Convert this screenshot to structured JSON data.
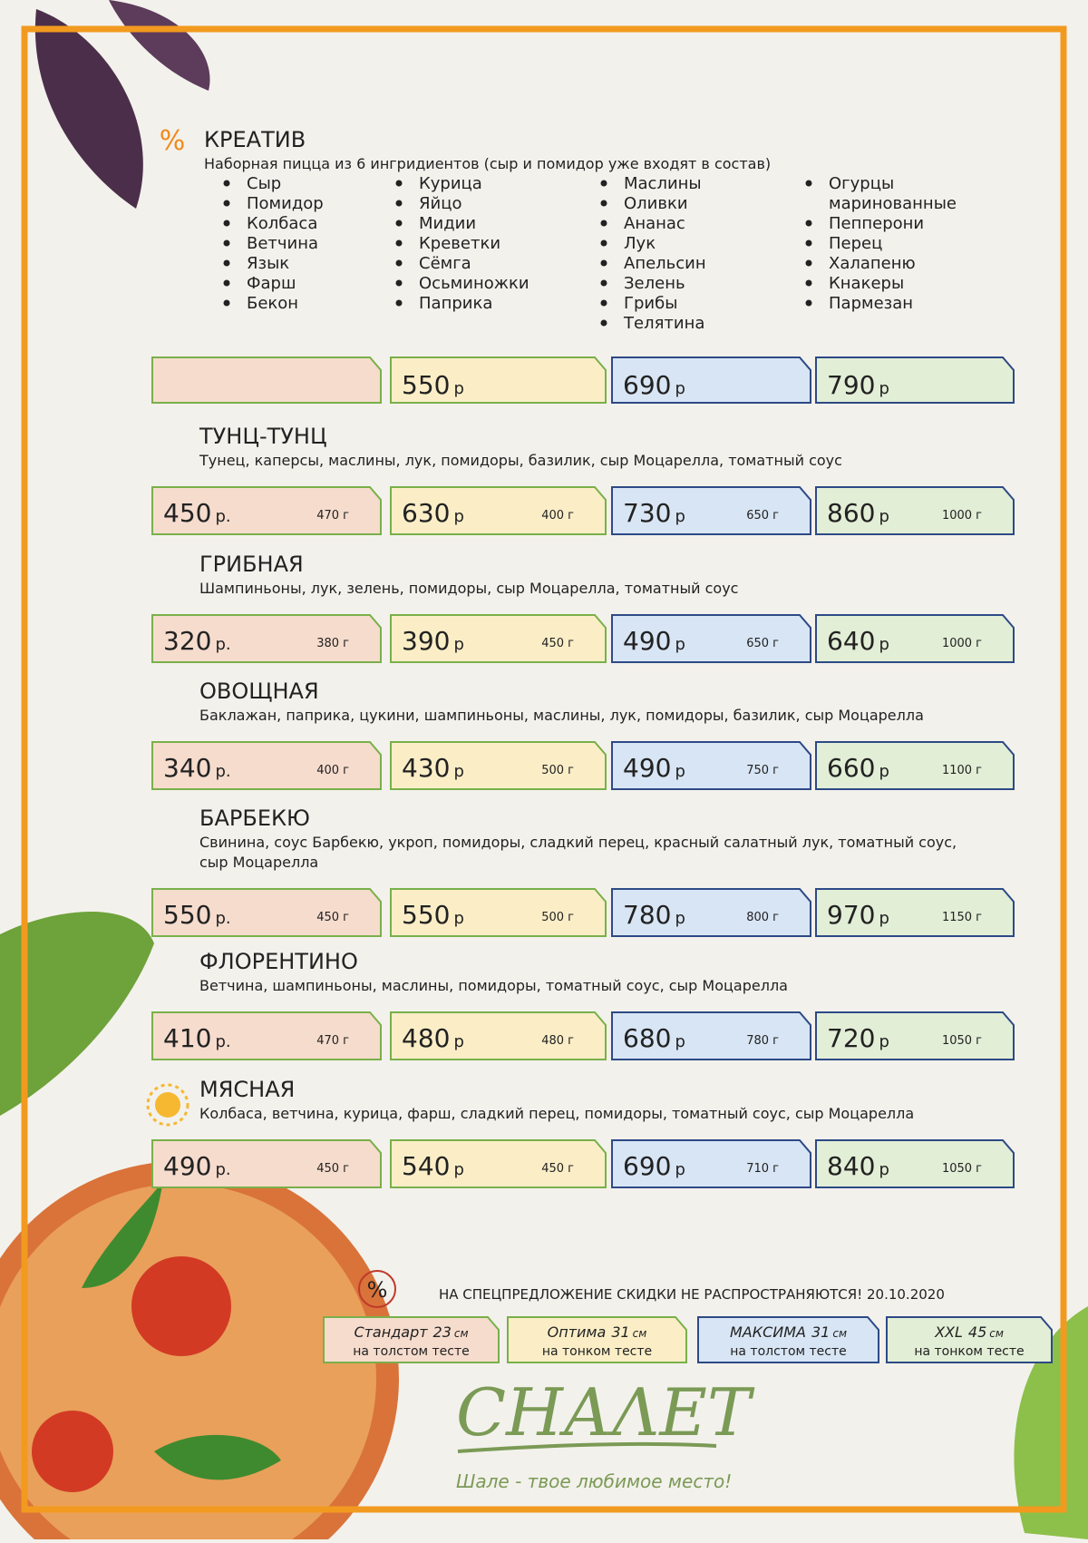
{
  "creative": {
    "title": "КРЕАТИВ",
    "subtitle": "Наборная пицца из 6 ингридиентов (сыр и помидор уже входят в состав)",
    "columns": [
      [
        "Сыр",
        "Помидор",
        "Колбаса",
        "Ветчина",
        "Язык",
        "Фарш",
        "Бекон"
      ],
      [
        "Курица",
        "Яйцо",
        "Мидии",
        "Креветки",
        "Сёмга",
        "Осьминожки",
        "Паприка"
      ],
      [
        "Маслины",
        "Оливки",
        "Ананас",
        "Лук",
        "Апельсин",
        "Зелень",
        "Грибы",
        "Телятина"
      ],
      [
        [
          "Огурцы",
          "маринованные"
        ],
        "Пепперони",
        "Перец",
        "Халапеню",
        "Кнакеры",
        "Пармезан"
      ]
    ],
    "prices": [
      {
        "amount": "550",
        "unit": "р"
      },
      {
        "amount": "690",
        "unit": "р"
      },
      {
        "amount": "790",
        "unit": "р"
      }
    ]
  },
  "pizzas": [
    {
      "name": "ТУНЦ-ТУНЦ",
      "ingredients": [
        "Тунец, каперсы, маслины, лук, помидоры, базилик, сыр Моцарелла, томатный соус"
      ],
      "prices": [
        {
          "amount": "450",
          "unit": "р.",
          "weight": "470 г"
        },
        {
          "amount": "630",
          "unit": "р",
          "weight": "400 г"
        },
        {
          "amount": "730",
          "unit": "р",
          "weight": "650 г"
        },
        {
          "amount": "860",
          "unit": "р",
          "weight": "1000 г"
        }
      ]
    },
    {
      "name": "ГРИБНАЯ",
      "ingredients": [
        "Шампиньоны, лук, зелень, помидоры, сыр Моцарелла, томатный соус"
      ],
      "prices": [
        {
          "amount": "320",
          "unit": "р.",
          "weight": "380 г"
        },
        {
          "amount": "390",
          "unit": "р",
          "weight": "450 г"
        },
        {
          "amount": "490",
          "unit": "р",
          "weight": "650 г"
        },
        {
          "amount": "640",
          "unit": "р",
          "weight": "1000 г"
        }
      ]
    },
    {
      "name": "ОВОЩНАЯ",
      "ingredients": [
        "Баклажан, паприка, цукини, шампиньоны, маслины, лук, помидоры, базилик, сыр Моцарелла"
      ],
      "prices": [
        {
          "amount": "340",
          "unit": "р.",
          "weight": "400 г"
        },
        {
          "amount": "430",
          "unit": "р",
          "weight": "500 г"
        },
        {
          "amount": "490",
          "unit": "р",
          "weight": "750 г"
        },
        {
          "amount": "660",
          "unit": "р",
          "weight": "1100 г"
        }
      ]
    },
    {
      "name": "БАРБЕКЮ",
      "ingredients": [
        "Свинина, соус Барбекю, укроп,  помидоры, сладкий  перец, красный салатный лук, томатный соус,",
        "сыр Моцарелла"
      ],
      "prices": [
        {
          "amount": "550",
          "unit": "р.",
          "weight": "450 г"
        },
        {
          "amount": "550",
          "unit": "р",
          "weight": "500 г"
        },
        {
          "amount": "780",
          "unit": "р",
          "weight": "800 г"
        },
        {
          "amount": "970",
          "unit": "р",
          "weight": "1150 г"
        }
      ]
    },
    {
      "name": "ФЛОРЕНТИНО",
      "ingredients": [
        "Ветчина, шампиньоны, маслины, помидоры, томатный соус, сыр Моцарелла"
      ],
      "prices": [
        {
          "amount": "410",
          "unit": "р.",
          "weight": "470 г"
        },
        {
          "amount": "480",
          "unit": "р",
          "weight": "480 г"
        },
        {
          "amount": "680",
          "unit": "р",
          "weight": "780 г"
        },
        {
          "amount": "720",
          "unit": "р",
          "weight": "1050 г"
        }
      ]
    },
    {
      "name": "МЯСНАЯ",
      "ingredients": [
        "Колбаса, ветчина, курица, фарш, сладкий перец, помидоры, томатный соус, сыр Моцарелла"
      ],
      "prices": [
        {
          "amount": "490",
          "unit": "р.",
          "weight": "450 г"
        },
        {
          "amount": "540",
          "unit": "р",
          "weight": "450 г"
        },
        {
          "amount": "690",
          "unit": "р",
          "weight": "710 г"
        },
        {
          "amount": "840",
          "unit": "р",
          "weight": "1050 г"
        }
      ]
    }
  ],
  "footer": {
    "percent_icon": "%",
    "notice": "НА СПЕЦПРЕДЛОЖЕНИЕ СКИДКИ НЕ РАСПРОСТРАНЯЮТСЯ! 20.10.2020",
    "sizes": [
      {
        "name": "Стандарт",
        "size": "23",
        "unit": "см",
        "dough": "на толстом тесте"
      },
      {
        "name": "Оптима",
        "size": "31",
        "unit": "см",
        "dough": "на тонком тесте"
      },
      {
        "name": "МАКСИМА",
        "size": "31",
        "unit": "см",
        "dough": "на толстом тесте"
      },
      {
        "name": "XXL",
        "size": "45",
        "unit": "см",
        "dough": "на тонком тесте"
      }
    ],
    "logo": "СНАΛЕТ",
    "tagline": "Шале - твое любимое место!"
  },
  "title_icon": "%"
}
